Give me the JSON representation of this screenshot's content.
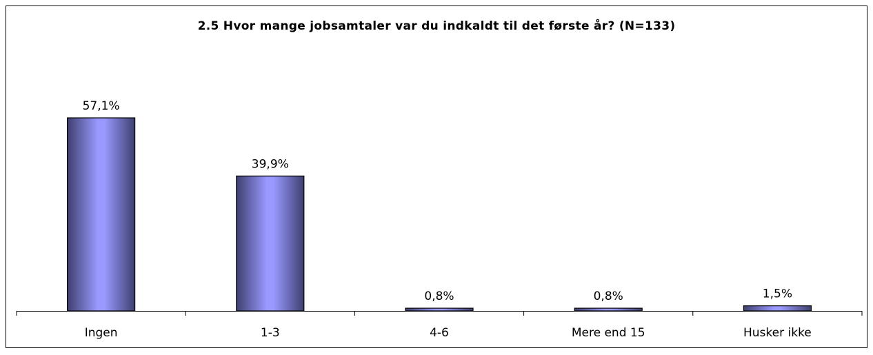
{
  "chart_data": {
    "type": "bar",
    "title": "2.5  Hvor mange jobsamtaler var du indkaldt til det første år? (N=133)",
    "categories": [
      "Ingen",
      "1-3",
      "4-6",
      "Mere end 15",
      "Husker ikke"
    ],
    "values": [
      57.1,
      39.9,
      0.8,
      0.8,
      1.5
    ],
    "value_labels": [
      "57,1%",
      "39,9%",
      "0,8%",
      "0,8%",
      "1,5%"
    ],
    "color": "#9999ff"
  }
}
